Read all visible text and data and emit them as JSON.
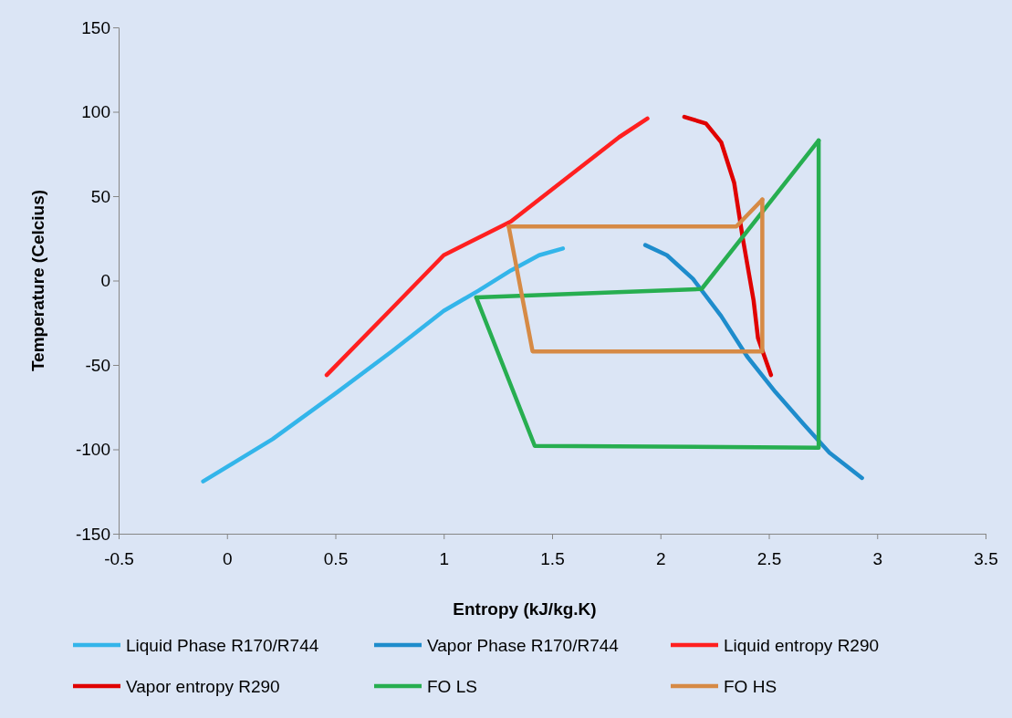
{
  "chart_data": {
    "type": "line",
    "xlabel": "Entropy (kJ/kg.K)",
    "ylabel": "Temperature (Celcius)",
    "xlim": [
      -0.5,
      3.5
    ],
    "xticks": [
      -0.5,
      0,
      0.5,
      1,
      1.5,
      2,
      2.5,
      3,
      3.5
    ],
    "ylim": [
      -150,
      150
    ],
    "yticks": [
      -150,
      -100,
      -50,
      0,
      50,
      100,
      150
    ],
    "grid": false,
    "legend": "bottom",
    "marker": "none",
    "line_style": "solid",
    "series": [
      {
        "name": "Liquid Phase R170/R744",
        "color": "#33b5ea",
        "x": [
          -0.11,
          0.21,
          0.51,
          0.76,
          1.0,
          1.16,
          1.31,
          1.44,
          1.55
        ],
        "values": [
          -119,
          -94,
          -66,
          -42,
          -18,
          -6,
          6,
          15,
          19
        ]
      },
      {
        "name": "Vapor Phase R170/R744",
        "color": "#1e8ccc",
        "x": [
          1.93,
          2.03,
          2.15,
          2.28,
          2.4,
          2.53,
          2.66,
          2.78,
          2.93
        ],
        "values": [
          21,
          15,
          1,
          -21,
          -45,
          -66,
          -85,
          -102,
          -117
        ]
      },
      {
        "name": "Liquid entropy R290",
        "color": "#ff2020",
        "x": [
          0.46,
          0.75,
          1.0,
          1.31,
          1.56,
          1.81,
          1.94
        ],
        "values": [
          -56,
          -18,
          15,
          35,
          60,
          85,
          96
        ]
      },
      {
        "name": "Vapor entropy R290",
        "color": "#e00000",
        "x": [
          2.11,
          2.21,
          2.28,
          2.34,
          2.38,
          2.43,
          2.45,
          2.51
        ],
        "values": [
          97,
          93,
          82,
          58,
          25,
          -12,
          -34,
          -56
        ]
      },
      {
        "name": "FO LS",
        "color": "#27ae50",
        "x": [
          1.15,
          2.19,
          2.73
        ],
        "values": [
          -10,
          -5,
          83
        ]
      },
      {
        "color": "#27ae50",
        "x": [
          1.15,
          1.42,
          2.73,
          2.73
        ],
        "values": [
          -10,
          -98,
          -99,
          83
        ]
      },
      {
        "name": "FO HS",
        "color": "#d68a45",
        "x": [
          1.3,
          2.35,
          2.47
        ],
        "values": [
          32,
          32,
          48
        ]
      },
      {
        "color": "#d68a45",
        "x": [
          1.3,
          1.41,
          2.47,
          2.47
        ],
        "values": [
          32,
          -42,
          -42,
          48
        ]
      }
    ]
  }
}
